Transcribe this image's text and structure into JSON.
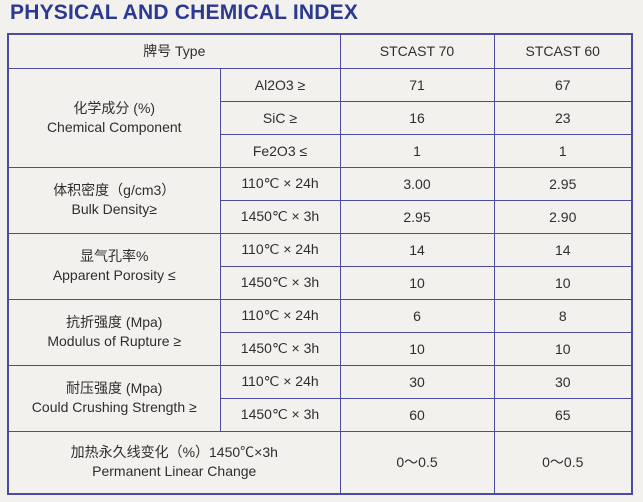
{
  "page": {
    "title": "PHYSICAL AND CHEMICAL INDEX",
    "title_color": "#2b3990",
    "background_color": "#f2f1ee",
    "border_color": "#4c4ba0",
    "text_color": "#2e2e2e"
  },
  "table": {
    "header": {
      "type_label": "牌号 Type",
      "columns": [
        "STCAST 70",
        "STCAST 60"
      ]
    },
    "groups": [
      {
        "label_zh": "化学成分 (%)",
        "label_en": "Chemical Component",
        "rows": [
          {
            "condition": "Al2O3 ≥",
            "v70": "71",
            "v60": "67"
          },
          {
            "condition": "SiC ≥",
            "v70": "16",
            "v60": "23"
          },
          {
            "condition": "Fe2O3 ≤",
            "v70": "1",
            "v60": "1"
          }
        ]
      },
      {
        "label_zh": "体积密度（g/cm3）",
        "label_en": "Bulk Density≥",
        "rows": [
          {
            "condition": "110℃ × 24h",
            "v70": "3.00",
            "v60": "2.95"
          },
          {
            "condition": "1450℃ × 3h",
            "v70": "2.95",
            "v60": "2.90"
          }
        ]
      },
      {
        "label_zh": "显气孔率%",
        "label_en": "Apparent Porosity ≤",
        "rows": [
          {
            "condition": "110℃ × 24h",
            "v70": "14",
            "v60": "14"
          },
          {
            "condition": "1450℃ × 3h",
            "v70": "10",
            "v60": "10"
          }
        ]
      },
      {
        "label_zh": "抗折强度 (Mpa)",
        "label_en": "Modulus of Rupture ≥",
        "rows": [
          {
            "condition": "110℃ × 24h",
            "v70": "6",
            "v60": "8"
          },
          {
            "condition": "1450℃ × 3h",
            "v70": "10",
            "v60": "10"
          }
        ]
      },
      {
        "label_zh": "耐压强度 (Mpa)",
        "label_en": "Could Crushing Strength ≥",
        "rows": [
          {
            "condition": "110℃ × 24h",
            "v70": "30",
            "v60": "30"
          },
          {
            "condition": "1450℃ × 3h",
            "v70": "60",
            "v60": "65"
          }
        ]
      }
    ],
    "footer": {
      "label_zh": "加热永久线变化（%）1450℃×3h",
      "label_en": "Permanent Linear Change",
      "v70": "0～0.5",
      "v60": "0～0.5"
    }
  }
}
